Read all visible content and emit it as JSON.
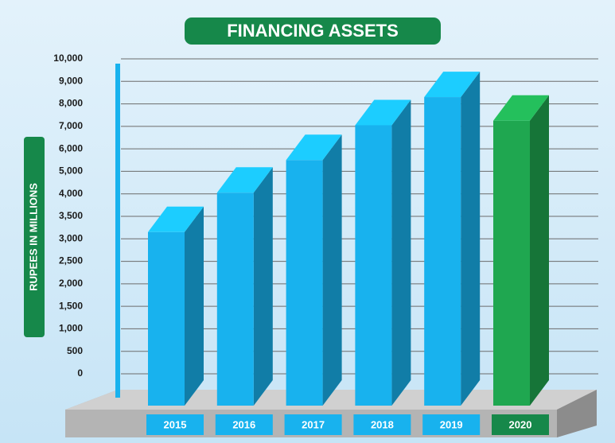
{
  "chart_data": {
    "type": "bar3d",
    "title": "FINANCING ASSETS",
    "ylabel": "RUPEES IN MILLIONS",
    "categories": [
      "2015",
      "2016",
      "2017",
      "2018",
      "2019",
      "2020"
    ],
    "values": [
      3150,
      4050,
      5500,
      7050,
      8300,
      7250
    ],
    "colors": [
      "#18b2ee",
      "#18b2ee",
      "#18b2ee",
      "#18b2ee",
      "#18b2ee",
      "#1fa750"
    ],
    "ylim": [
      0,
      10000
    ],
    "yticks": [
      0,
      500,
      {
        "value": 1000,
        "label": "1,000"
      },
      {
        "value": 1500,
        "label": "1,500"
      },
      {
        "value": 2000,
        "label": "2,000"
      },
      {
        "value": 2500,
        "label": "2,500"
      },
      {
        "value": 3000,
        "label": "3,000"
      },
      {
        "value": 3500,
        "label": "3,500"
      },
      {
        "value": 4000,
        "label": "4,000"
      },
      {
        "value": 5000,
        "label": "5,000"
      },
      {
        "value": 6000,
        "label": "6,000"
      },
      {
        "value": 7000,
        "label": "7,000"
      },
      {
        "value": 8000,
        "label": "8,000"
      },
      {
        "value": 9000,
        "label": "9,000"
      },
      {
        "value": 10000,
        "label": "10,000"
      }
    ],
    "grid": true
  }
}
